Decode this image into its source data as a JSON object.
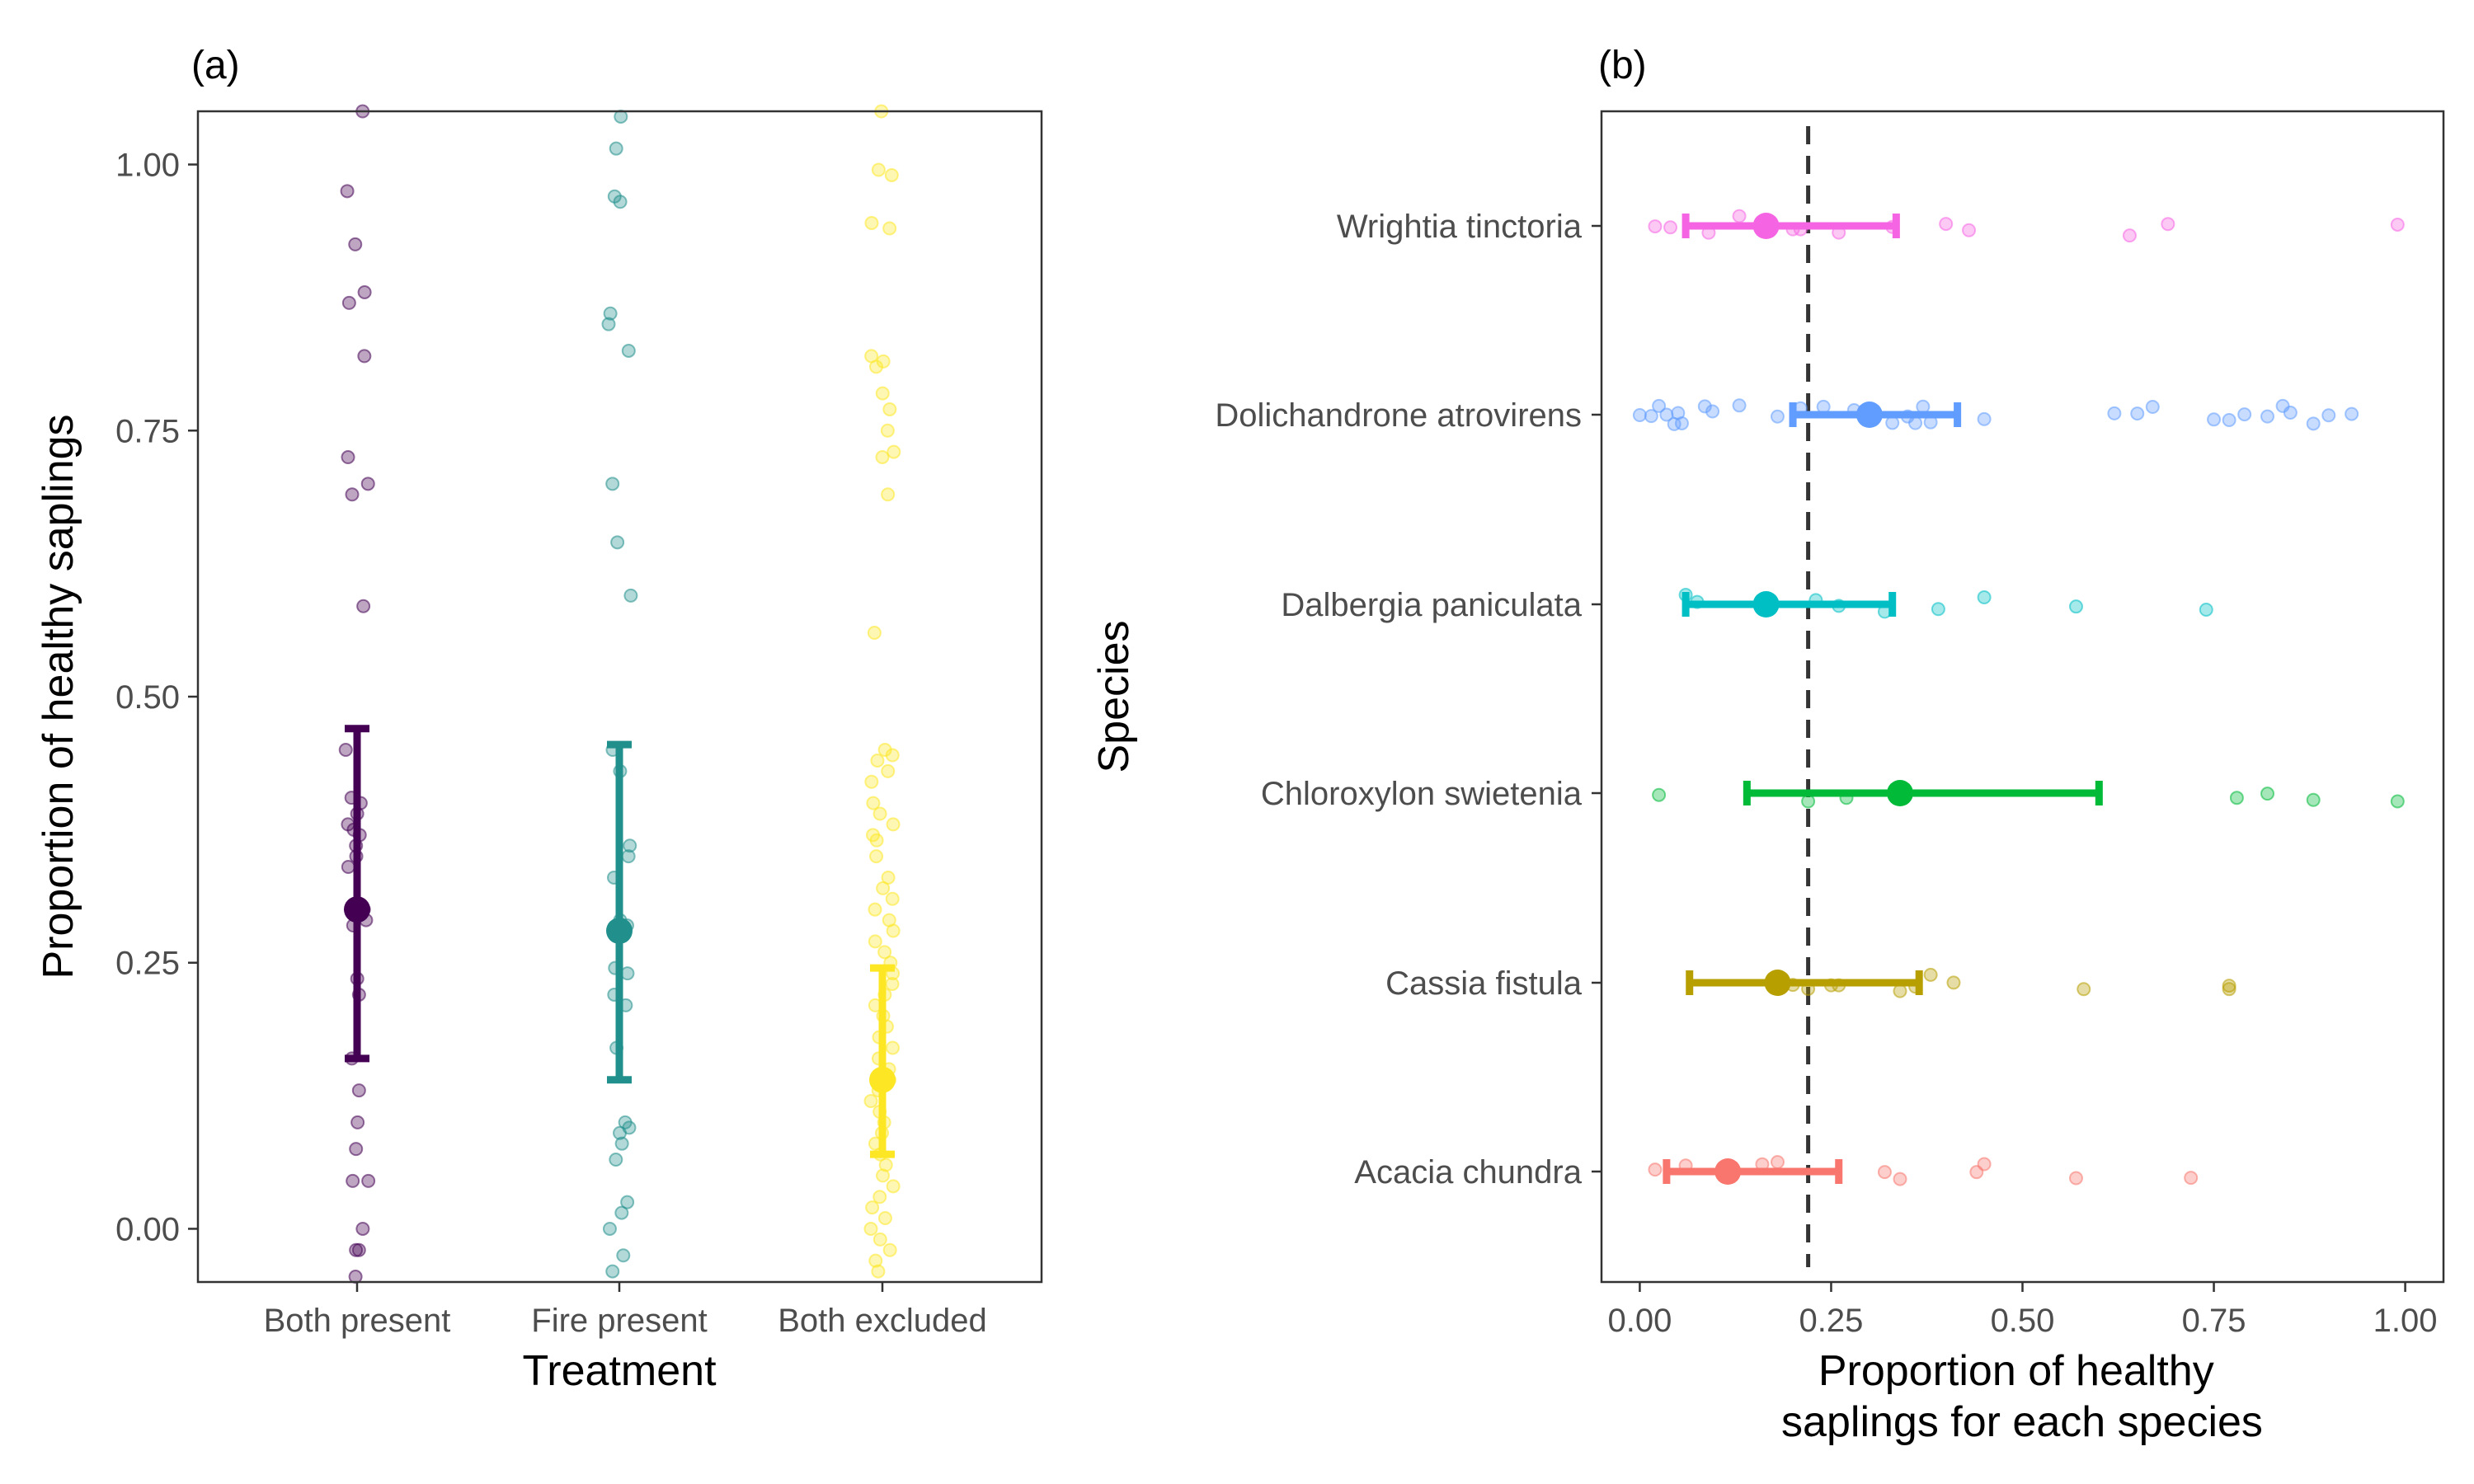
{
  "chart_data": [
    {
      "type": "scatter",
      "panel": "(a)",
      "xlabel": "Treatment",
      "ylabel": "Proportion of healthy saplings",
      "ylim": [
        -0.05,
        1.05
      ],
      "yticks": [
        "0.00",
        "0.25",
        "0.50",
        "0.75",
        "1.00"
      ],
      "categories": [
        "Both present",
        "Fire present",
        "Both excluded"
      ],
      "colors": [
        "#440154",
        "#21908C",
        "#FDE725"
      ],
      "summary": [
        {
          "category": "Both present",
          "mean": 0.3,
          "lower": 0.16,
          "upper": 0.47
        },
        {
          "category": "Fire present",
          "mean": 0.28,
          "lower": 0.14,
          "upper": 0.455
        },
        {
          "category": "Both excluded",
          "mean": 0.14,
          "lower": 0.07,
          "upper": 0.245
        }
      ],
      "points": [
        [
          1.05,
          0.975,
          0.925,
          0.88,
          0.87,
          0.82,
          0.725,
          0.7,
          0.69,
          0.585,
          0.45,
          0.405,
          0.4,
          0.39,
          0.38,
          0.375,
          0.37,
          0.36,
          0.35,
          0.34,
          0.3,
          0.29,
          0.285,
          0.235,
          0.22,
          0.16,
          0.13,
          0.1,
          0.075,
          0.045,
          0.045,
          0.0,
          -0.02,
          -0.02,
          -0.045
        ],
        [
          1.045,
          1.015,
          0.97,
          0.965,
          0.86,
          0.85,
          0.825,
          0.7,
          0.645,
          0.595,
          0.45,
          0.43,
          0.36,
          0.35,
          0.33,
          0.29,
          0.285,
          0.245,
          0.24,
          0.22,
          0.21,
          0.17,
          0.1,
          0.095,
          0.09,
          0.08,
          0.065,
          0.025,
          0.015,
          0.0,
          -0.025,
          -0.04
        ],
        [
          1.05,
          0.995,
          0.99,
          0.945,
          0.94,
          0.82,
          0.815,
          0.81,
          0.785,
          0.77,
          0.75,
          0.73,
          0.725,
          0.69,
          0.56,
          0.45,
          0.445,
          0.44,
          0.43,
          0.42,
          0.4,
          0.39,
          0.38,
          0.37,
          0.365,
          0.35,
          0.33,
          0.32,
          0.31,
          0.3,
          0.29,
          0.28,
          0.27,
          0.26,
          0.25,
          0.24,
          0.23,
          0.22,
          0.21,
          0.2,
          0.19,
          0.18,
          0.17,
          0.16,
          0.15,
          0.14,
          0.13,
          0.12,
          0.11,
          0.1,
          0.09,
          0.08,
          0.07,
          0.06,
          0.05,
          0.04,
          0.03,
          0.02,
          0.01,
          0.0,
          -0.01,
          -0.02,
          -0.03,
          -0.04
        ]
      ]
    },
    {
      "type": "scatter",
      "panel": "(b)",
      "xlabel": "Proportion of healthy\nsaplings for each species",
      "ylabel": "Species",
      "xlim": [
        -0.05,
        1.05
      ],
      "xticks": [
        "0.00",
        "0.25",
        "0.50",
        "0.75",
        "1.00"
      ],
      "reference_line": 0.22,
      "categories": [
        "Wrightia tinctoria",
        "Dolichandrone atrovirens",
        "Dalbergia paniculata",
        "Chloroxylon swietenia",
        "Cassia fistula",
        "Acacia chundra"
      ],
      "colors": [
        "#F564E3",
        "#619CFF",
        "#00BFC4",
        "#00BA38",
        "#B79F00",
        "#F8766D"
      ],
      "summary": [
        {
          "category": "Wrightia tinctoria",
          "mean": 0.165,
          "lower": 0.06,
          "upper": 0.335
        },
        {
          "category": "Dolichandrone atrovirens",
          "mean": 0.3,
          "lower": 0.2,
          "upper": 0.415
        },
        {
          "category": "Dalbergia paniculata",
          "mean": 0.165,
          "lower": 0.06,
          "upper": 0.33
        },
        {
          "category": "Chloroxylon swietenia",
          "mean": 0.34,
          "lower": 0.14,
          "upper": 0.6
        },
        {
          "category": "Cassia fistula",
          "mean": 0.18,
          "lower": 0.065,
          "upper": 0.365
        },
        {
          "category": "Acacia chundra",
          "mean": 0.115,
          "lower": 0.035,
          "upper": 0.26
        }
      ],
      "points": [
        [
          0.02,
          0.04,
          0.09,
          0.13,
          0.2,
          0.21,
          0.26,
          0.33,
          0.4,
          0.43,
          0.64,
          0.69,
          0.99
        ],
        [
          0.0,
          0.015,
          0.025,
          0.035,
          0.045,
          0.05,
          0.055,
          0.085,
          0.095,
          0.13,
          0.18,
          0.21,
          0.24,
          0.28,
          0.3,
          0.33,
          0.35,
          0.36,
          0.37,
          0.38,
          0.45,
          0.62,
          0.65,
          0.67,
          0.75,
          0.77,
          0.79,
          0.82,
          0.84,
          0.85,
          0.88,
          0.9,
          0.93
        ],
        [
          0.06,
          0.075,
          0.23,
          0.26,
          0.32,
          0.39,
          0.45,
          0.57,
          0.74
        ],
        [
          0.025,
          0.22,
          0.27,
          0.78,
          0.82,
          0.88,
          0.99
        ],
        [
          0.2,
          0.22,
          0.25,
          0.26,
          0.34,
          0.36,
          0.38,
          0.41,
          0.58,
          0.77,
          0.77
        ],
        [
          0.02,
          0.06,
          0.16,
          0.18,
          0.32,
          0.34,
          0.44,
          0.45,
          0.57,
          0.72
        ]
      ]
    }
  ]
}
